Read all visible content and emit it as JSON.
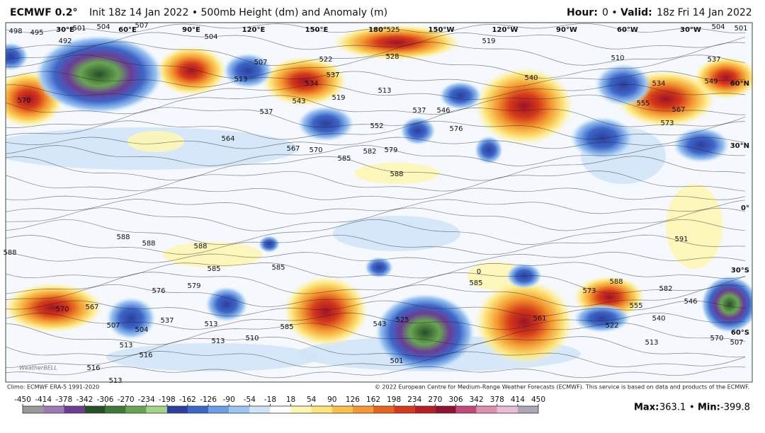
{
  "header": {
    "model": "ECMWF 0.2°",
    "subtitle": "Init 18z 14 Jan 2022 • 500mb Height (dm) and Anomaly (m)",
    "hour_label": "Hour:",
    "hour": "0 •",
    "valid_label": "Valid:",
    "valid": "18z Fri 14 Jan 2022"
  },
  "map": {
    "longitude_labels": [
      "30°E",
      "60°E",
      "90°E",
      "120°E",
      "150°E",
      "180°",
      "150°W",
      "120°W",
      "90°W",
      "60°W",
      "30°W"
    ],
    "latitude_labels": [
      "60°N",
      "30°N",
      "0°",
      "30°S",
      "60°S"
    ],
    "contour_labels": [
      "498",
      "495",
      "501",
      "504",
      "507",
      "492",
      "504",
      "507",
      "513",
      "522",
      "525",
      "528",
      "534",
      "537",
      "513",
      "519",
      "540",
      "510",
      "537",
      "549",
      "504",
      "501",
      "534",
      "555",
      "567",
      "573",
      "570",
      "537",
      "543",
      "519",
      "552",
      "537",
      "546",
      "576",
      "564",
      "567",
      "570",
      "582",
      "579",
      "585",
      "588",
      "588",
      "588",
      "588",
      "591",
      "588",
      "585",
      "585",
      "579",
      "576",
      "570",
      "567",
      "507",
      "504",
      "537",
      "513",
      "585",
      "543",
      "525",
      "561",
      "522",
      "540",
      "555",
      "573",
      "582",
      "588",
      "585",
      "0",
      "546",
      "570",
      "507",
      "513",
      "513",
      "516",
      "513",
      "510",
      "501",
      "516",
      "513"
    ],
    "logo": "WeatherBELL"
  },
  "footer": {
    "climo": "Climo: ECMWF ERA-5 1991-2020",
    "copyright": "© 2022 European Centre for Medium-Range Weather Forecasts (ECMWF). This service is based on data and products of the ECMWF."
  },
  "colorbar": {
    "ticks": [
      -450,
      -414,
      -378,
      -342,
      -306,
      -270,
      -234,
      -198,
      -162,
      -126,
      -90,
      -54,
      -18,
      18,
      54,
      90,
      126,
      162,
      198,
      234,
      270,
      306,
      342,
      378,
      414,
      450
    ],
    "colors": [
      "#9a9a9a",
      "#9b7bb5",
      "#6b3d94",
      "#274f27",
      "#3e7a36",
      "#68a552",
      "#a6d38c",
      "#2c3f9c",
      "#3c66c8",
      "#6a9ee6",
      "#9cc6f2",
      "#cfe4f8",
      "#ffffff",
      "#fff7b0",
      "#fde57a",
      "#fbc04a",
      "#f39a30",
      "#e8641e",
      "#d63a1a",
      "#b81c24",
      "#8e1230",
      "#c24a7a",
      "#e08fb0",
      "#e6bcd6",
      "#b0a4b8"
    ]
  },
  "stats": {
    "max_label": "Max:",
    "max": 363.1,
    "separator": "•",
    "min_label": "Min:",
    "min": -399.8
  }
}
